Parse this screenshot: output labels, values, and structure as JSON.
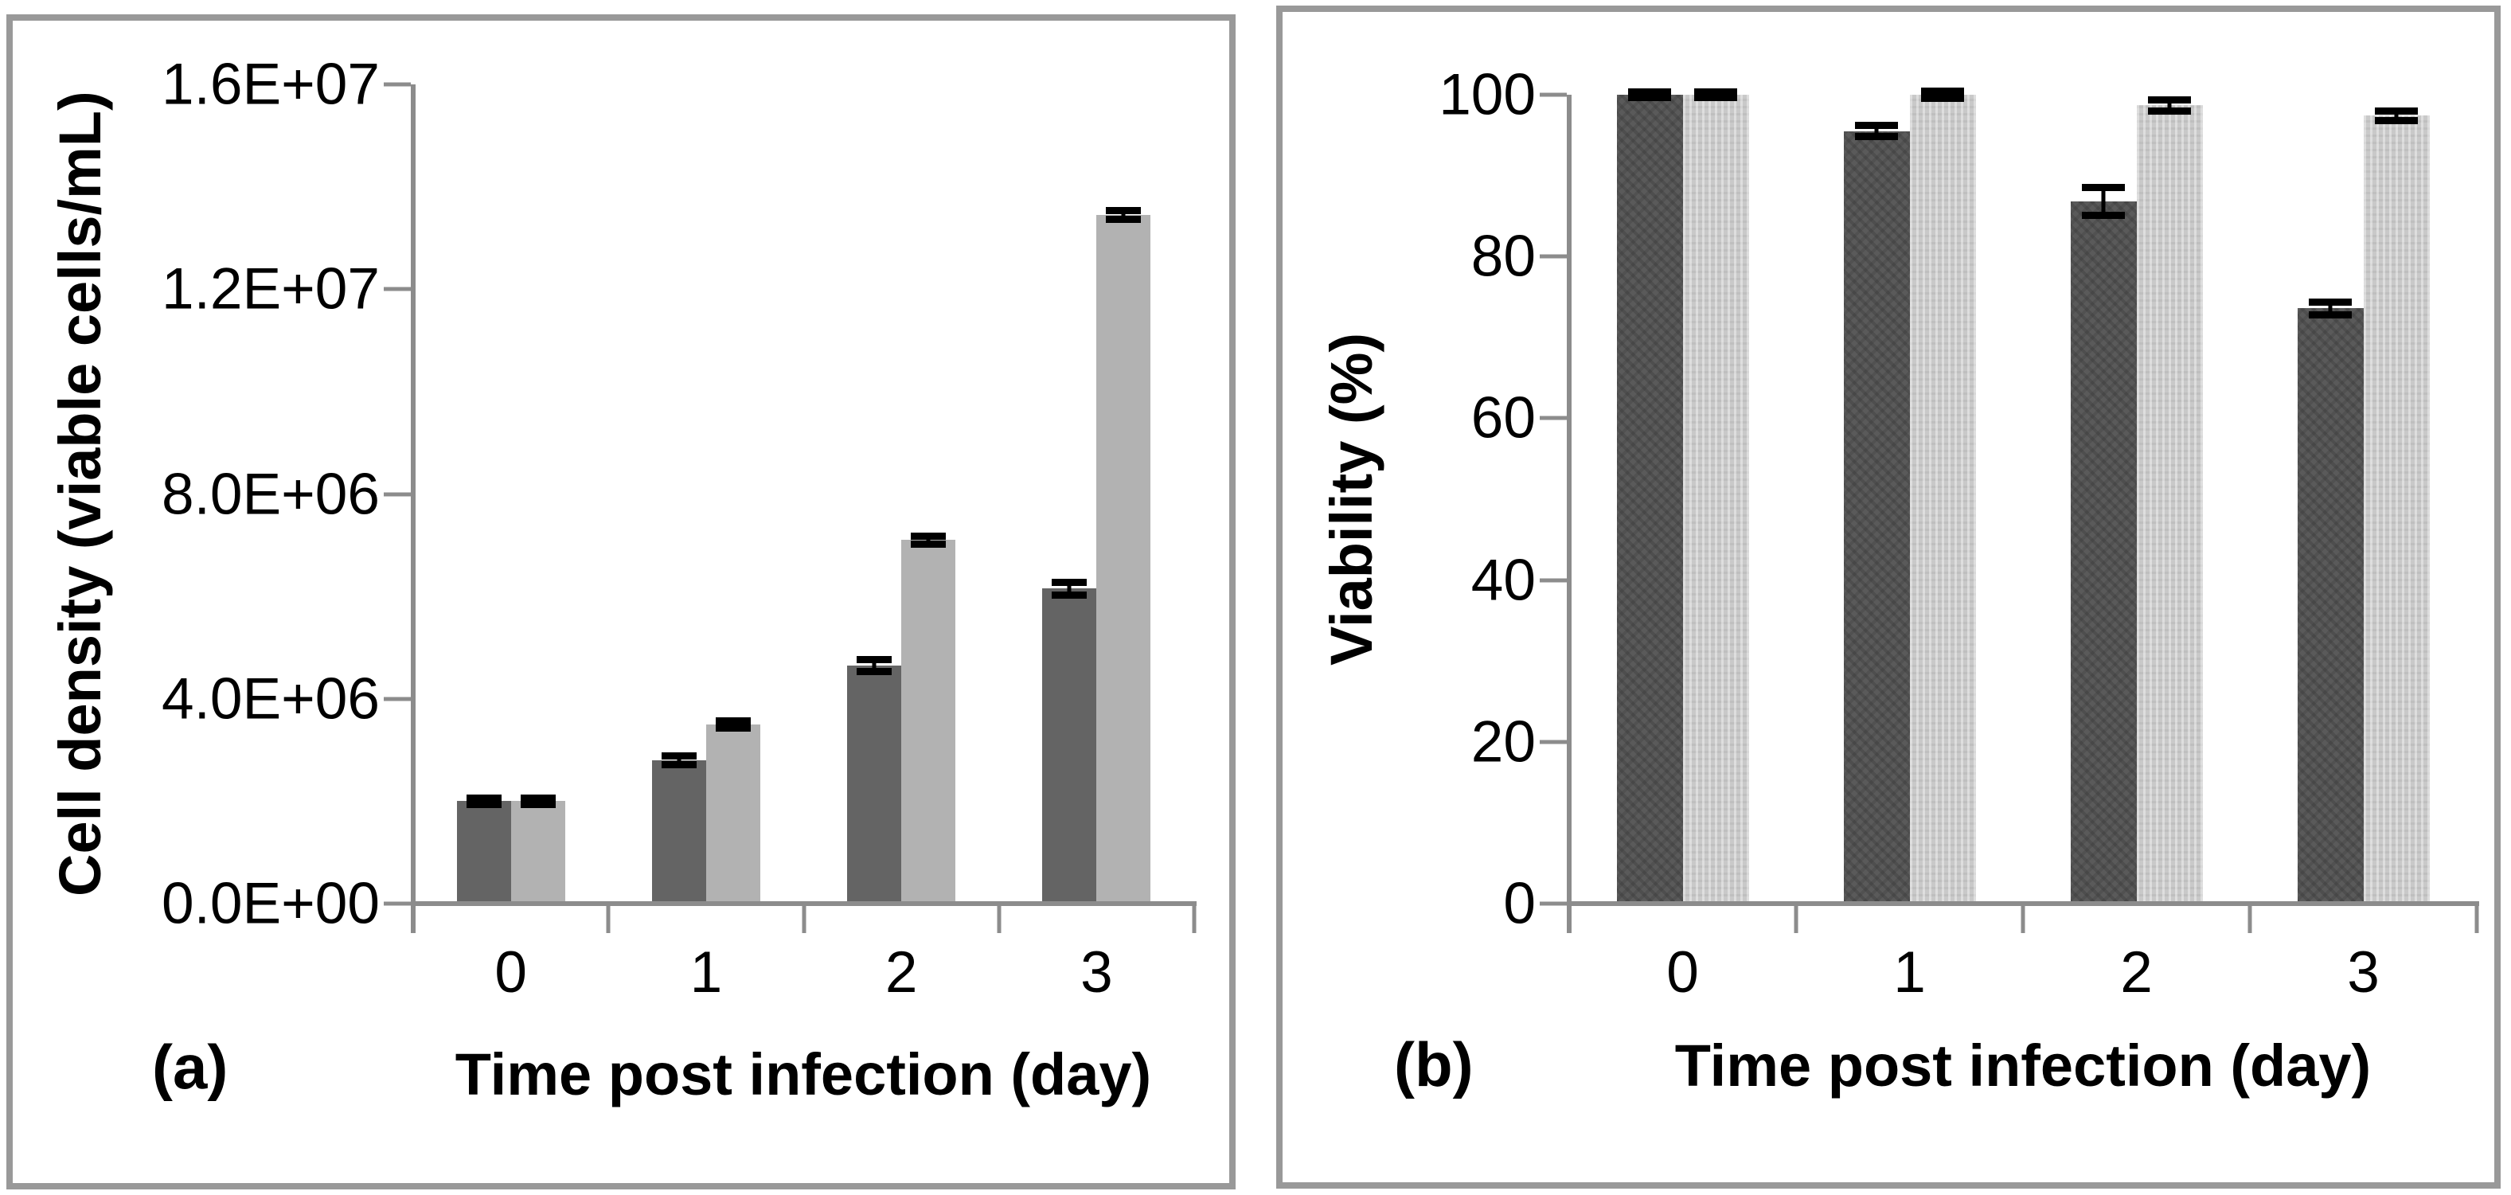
{
  "chart_data": [
    {
      "type": "bar",
      "panel_label": "(a)",
      "title": "",
      "xlabel": "Time post infection (day)",
      "ylabel": "Cell density (viable cells/mL)",
      "categories": [
        "0",
        "1",
        "2",
        "3"
      ],
      "ylim": [
        0,
        16000000
      ],
      "yticks": {
        "values": [
          16000000,
          12000000,
          8000000,
          4000000,
          0
        ],
        "labels": [
          "1.6E+07",
          "1.2E+07",
          "8.0E+06",
          "4.0E+06",
          "0.0E+00"
        ]
      },
      "grid": false,
      "legend": false,
      "series": [
        {
          "name": "dark-gray-bars",
          "color": "#646464",
          "texture": "solid",
          "values": [
            2000000,
            2800000,
            4650000,
            6150000
          ],
          "errors": [
            60000,
            80000,
            120000,
            120000
          ]
        },
        {
          "name": "light-gray-bars",
          "color": "#b2b2b2",
          "texture": "solid",
          "values": [
            2000000,
            3500000,
            7100000,
            13450000
          ],
          "errors": [
            60000,
            70000,
            80000,
            80000
          ]
        }
      ]
    },
    {
      "type": "bar",
      "panel_label": "(b)",
      "title": "",
      "xlabel": "Time post infection (day)",
      "ylabel": "Viability (%)",
      "categories": [
        "0",
        "1",
        "2",
        "3"
      ],
      "ylim": [
        0,
        100
      ],
      "yticks": {
        "values": [
          100,
          80,
          60,
          40,
          20,
          0
        ],
        "labels": [
          "100",
          "80",
          "60",
          "40",
          "20",
          "0"
        ]
      },
      "grid": false,
      "legend": false,
      "series": [
        {
          "name": "dark-gray-bars",
          "color": "#5a5a5a",
          "texture": "dots",
          "values": [
            100,
            95.5,
            86.8,
            73.6
          ],
          "errors": [
            0.3,
            0.7,
            1.7,
            0.8
          ]
        },
        {
          "name": "light-gray-bars",
          "color": "#c9c9c9",
          "texture": "stripes",
          "values": [
            100,
            100,
            98.7,
            97.4
          ],
          "errors": [
            0.3,
            0.4,
            0.7,
            0.6
          ]
        }
      ]
    }
  ],
  "colors": {
    "axis": "#8c8c8c",
    "panel_border": "#999999",
    "error_bar": "#000000",
    "text": "#000000"
  }
}
